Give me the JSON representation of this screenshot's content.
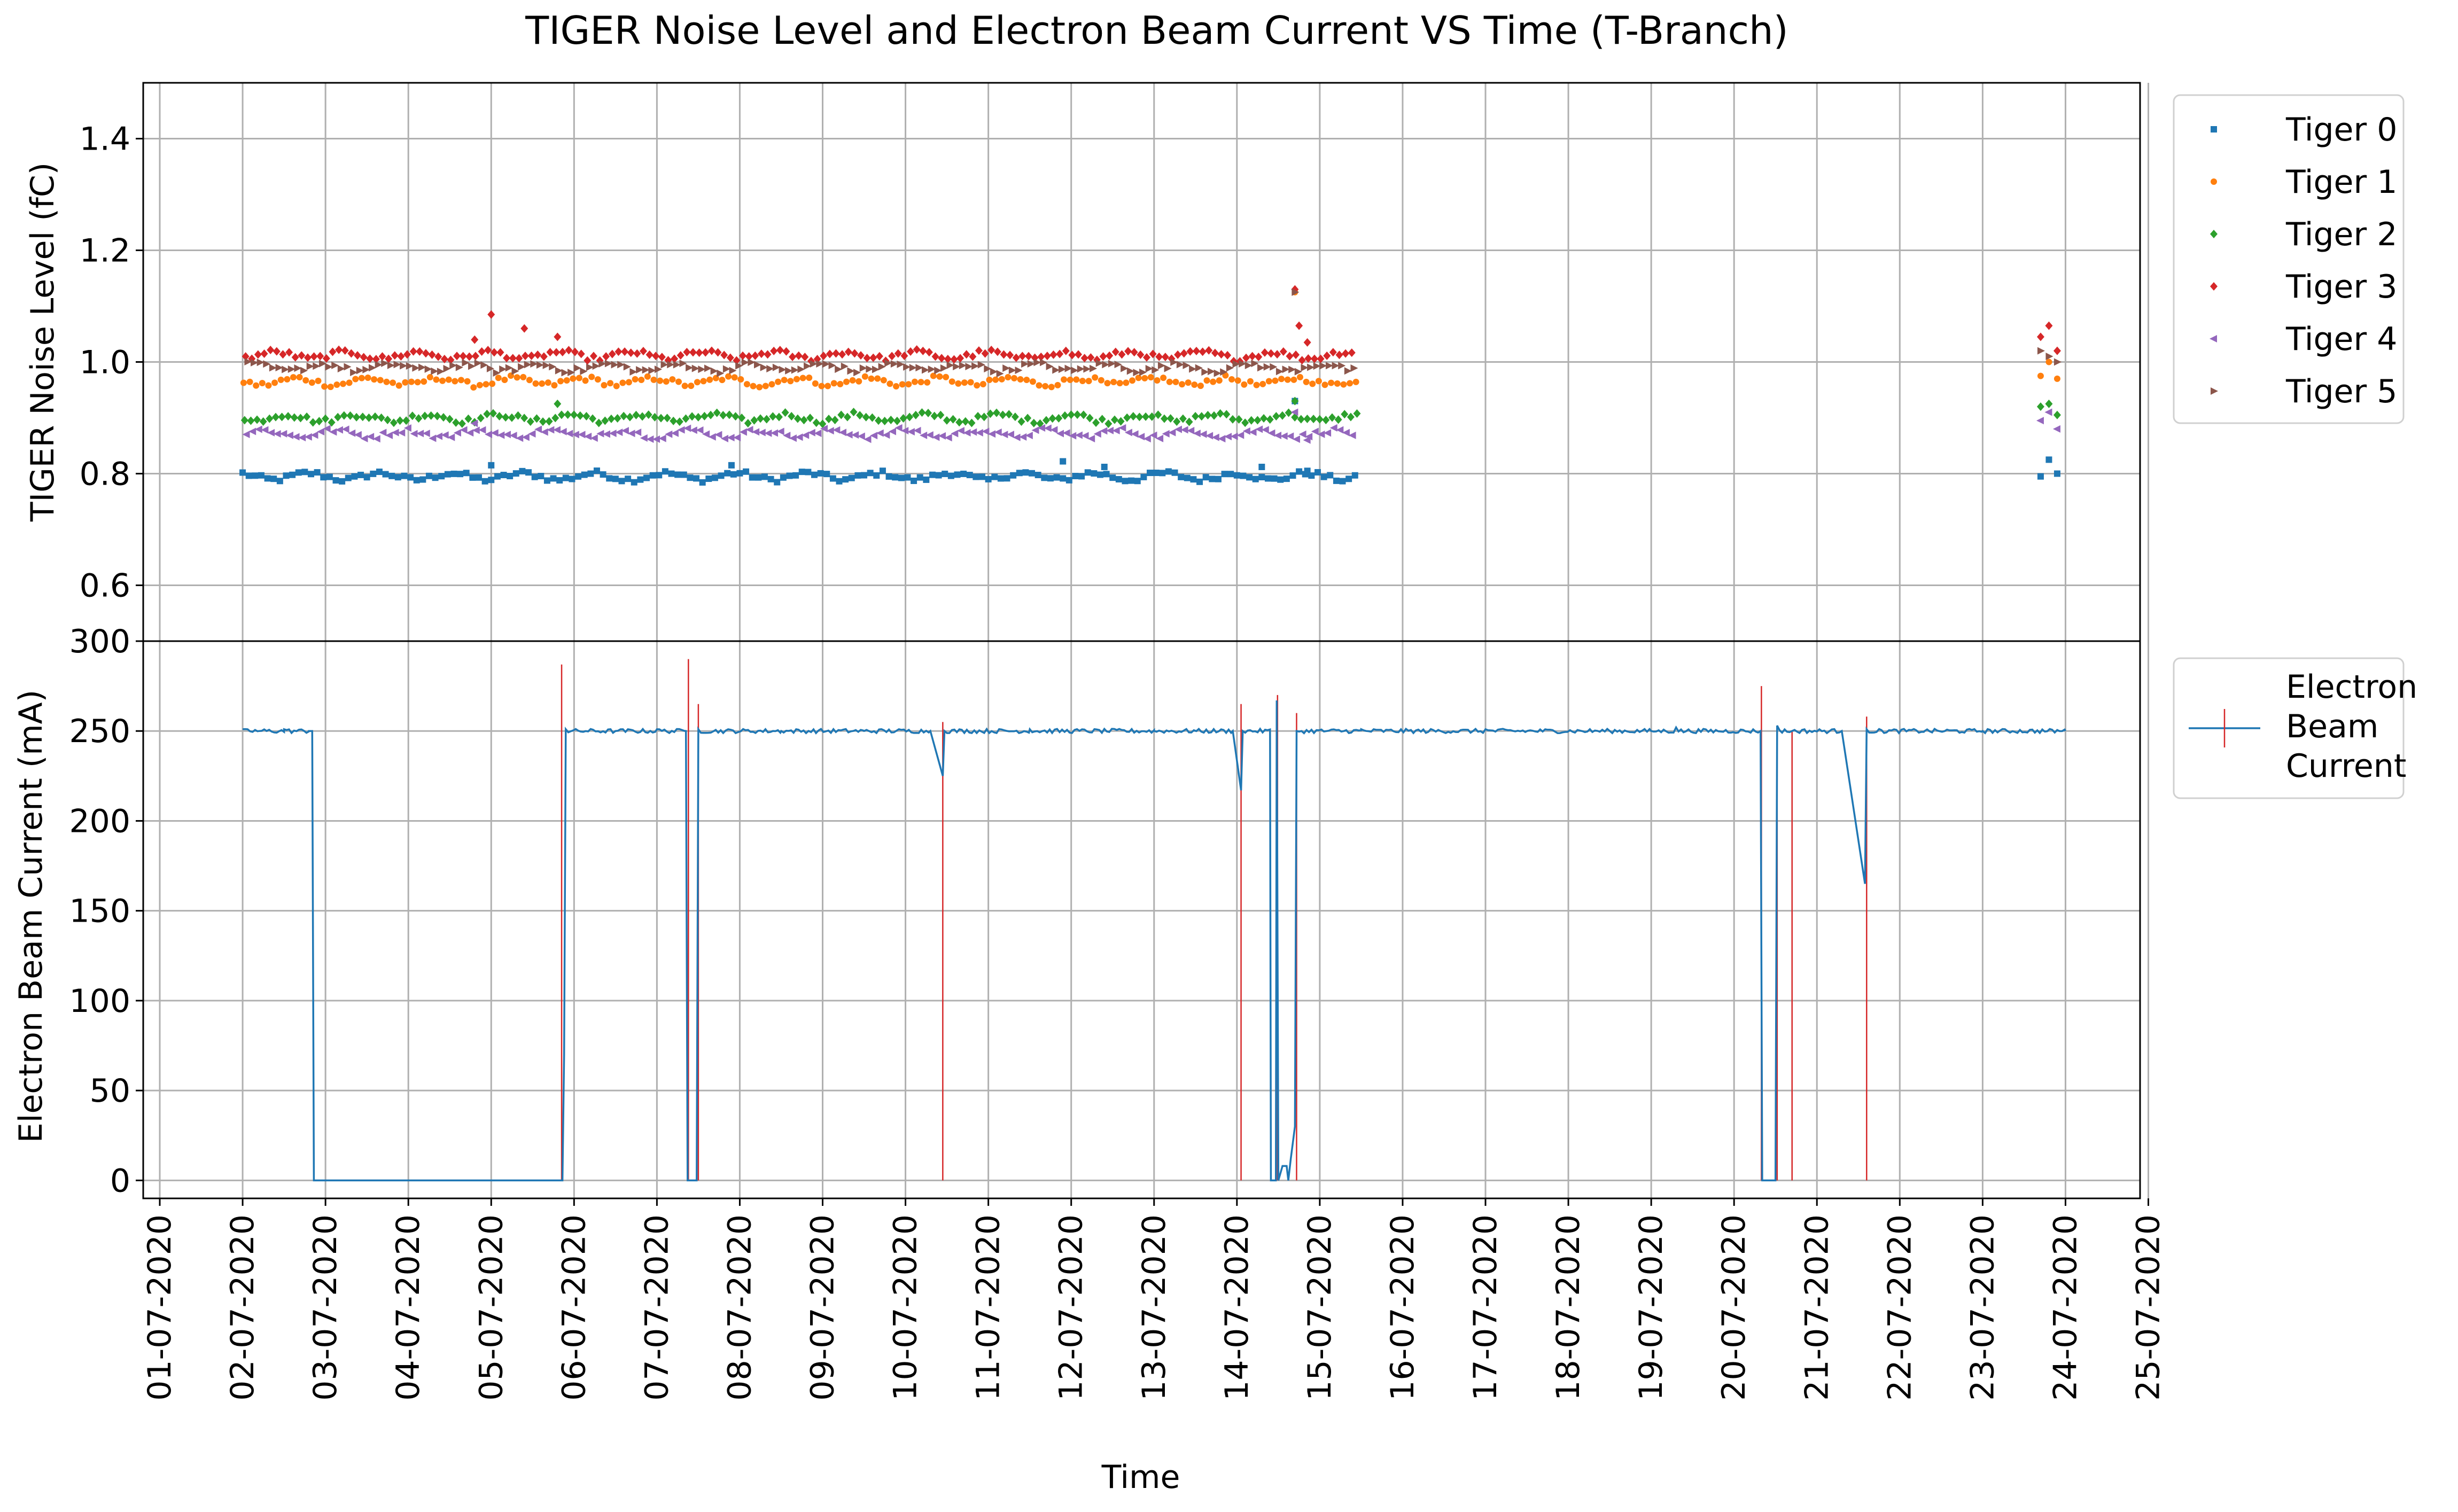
{
  "chart_data": {
    "type": "scatter",
    "title": "TIGER Noise Level and Electron Beam Current VS Time (T-Branch)",
    "xlabel": "Time",
    "x_ticks": [
      "01-07-2020",
      "02-07-2020",
      "03-07-2020",
      "04-07-2020",
      "05-07-2020",
      "06-07-2020",
      "07-07-2020",
      "08-07-2020",
      "09-07-2020",
      "10-07-2020",
      "11-07-2020",
      "12-07-2020",
      "13-07-2020",
      "14-07-2020",
      "15-07-2020",
      "16-07-2020",
      "17-07-2020",
      "18-07-2020",
      "19-07-2020",
      "20-07-2020",
      "21-07-2020",
      "22-07-2020",
      "23-07-2020",
      "24-07-2020",
      "25-07-2020"
    ],
    "xlim_days": [
      0.8,
      24.9
    ],
    "grid": true,
    "panels": [
      {
        "type": "scatter",
        "ylabel": "TIGER Noise Level (fC)",
        "ylim": [
          0.5,
          1.5
        ],
        "y_ticks": [
          "0.6",
          "0.8",
          "1.0",
          "1.2",
          "1.4"
        ],
        "legend_position": "right-top",
        "series": [
          {
            "name": "Tiger 0",
            "marker": "square",
            "color": "#1f77b4",
            "base": 0.795,
            "spikes": [
              [
                5.0,
                0.815
              ],
              [
                7.9,
                0.815
              ],
              [
                11.9,
                0.822
              ],
              [
                12.4,
                0.812
              ],
              [
                14.3,
                0.812
              ],
              [
                14.7,
                0.93
              ],
              [
                14.85,
                0.805
              ]
            ],
            "late": [
              [
                23.7,
                0.795
              ],
              [
                23.8,
                0.825
              ],
              [
                23.9,
                0.8
              ]
            ]
          },
          {
            "name": "Tiger 1",
            "marker": "circle",
            "color": "#ff7f0e",
            "base": 0.965,
            "spikes": [
              [
                14.7,
                1.125
              ]
            ],
            "late": [
              [
                23.7,
                0.975
              ],
              [
                23.8,
                1.0
              ],
              [
                23.9,
                0.97
              ]
            ]
          },
          {
            "name": "Tiger 2",
            "marker": "diamond",
            "color": "#2ca02c",
            "base": 0.9,
            "spikes": [
              [
                5.8,
                0.925
              ],
              [
                14.7,
                0.93
              ]
            ],
            "late": [
              [
                23.7,
                0.92
              ],
              [
                23.8,
                0.925
              ],
              [
                23.9,
                0.905
              ]
            ]
          },
          {
            "name": "Tiger 3",
            "marker": "diamond",
            "color": "#d62728",
            "base": 1.012,
            "spikes": [
              [
                4.8,
                1.04
              ],
              [
                5.0,
                1.085
              ],
              [
                5.4,
                1.06
              ],
              [
                5.8,
                1.045
              ],
              [
                14.7,
                1.13
              ],
              [
                14.75,
                1.065
              ],
              [
                14.85,
                1.035
              ]
            ],
            "late": [
              [
                23.7,
                1.045
              ],
              [
                23.8,
                1.065
              ],
              [
                23.9,
                1.02
              ]
            ]
          },
          {
            "name": "Tiger 4",
            "marker": "triangle-left",
            "color": "#9467bd",
            "base": 0.872,
            "spikes": [
              [
                4.8,
                0.89
              ],
              [
                14.7,
                0.91
              ],
              [
                14.85,
                0.86
              ]
            ],
            "late": [
              [
                23.7,
                0.895
              ],
              [
                23.8,
                0.91
              ],
              [
                23.9,
                0.88
              ]
            ]
          },
          {
            "name": "Tiger 5",
            "marker": "triangle-right",
            "color": "#8c564b",
            "base": 0.99,
            "spikes": [
              [
                14.7,
                1.125
              ]
            ],
            "late": [
              [
                23.7,
                1.02
              ],
              [
                23.8,
                1.01
              ],
              [
                23.9,
                1.0
              ]
            ]
          }
        ],
        "x_range": [
          2.0,
          15.45
        ]
      },
      {
        "type": "line",
        "ylabel": "Electron Beam Current (mA)",
        "ylim": [
          -10,
          300
        ],
        "y_ticks": [
          "0",
          "50",
          "100",
          "150",
          "200",
          "250",
          "300"
        ],
        "legend_position": "right-top",
        "series": [
          {
            "name": "Electron Beam Current",
            "color": "#1f77b4",
            "error_color": "#d62728",
            "points": [
              [
                2.0,
                251
              ],
              [
                2.2,
                250
              ],
              [
                2.5,
                251
              ],
              [
                2.8,
                250
              ],
              [
                2.84,
                250
              ],
              [
                2.86,
                0
              ],
              [
                5.86,
                0
              ],
              [
                5.88,
                70
              ],
              [
                5.9,
                251
              ],
              [
                6.5,
                250
              ],
              [
                7.0,
                251
              ],
              [
                7.35,
                250
              ],
              [
                7.37,
                0
              ],
              [
                7.48,
                0
              ],
              [
                7.5,
                251
              ],
              [
                8.5,
                250
              ],
              [
                9.5,
                250
              ],
              [
                10.3,
                250
              ],
              [
                10.45,
                225
              ],
              [
                10.47,
                250
              ],
              [
                11.5,
                251
              ],
              [
                13.0,
                250
              ],
              [
                13.95,
                250
              ],
              [
                14.05,
                217
              ],
              [
                14.07,
                250
              ],
              [
                14.4,
                250
              ],
              [
                14.41,
                0
              ],
              [
                14.47,
                0
              ],
              [
                14.48,
                267
              ],
              [
                14.5,
                0
              ],
              [
                14.55,
                8
              ],
              [
                14.6,
                8
              ],
              [
                14.62,
                0
              ],
              [
                14.65,
                12
              ],
              [
                14.7,
                30
              ],
              [
                14.72,
                250
              ],
              [
                15.5,
                251
              ],
              [
                17.0,
                251
              ],
              [
                18.5,
                250
              ],
              [
                19.0,
                250
              ],
              [
                19.3,
                252
              ],
              [
                20.32,
                250
              ],
              [
                20.34,
                0
              ],
              [
                20.5,
                0
              ],
              [
                20.52,
                253
              ],
              [
                20.7,
                250
              ],
              [
                21.3,
                250
              ],
              [
                21.58,
                165
              ],
              [
                21.6,
                251
              ],
              [
                22.3,
                250
              ],
              [
                23.0,
                250
              ],
              [
                24.0,
                250
              ]
            ],
            "error_bars": [
              [
                5.85,
                287
              ],
              [
                7.38,
                290
              ],
              [
                7.5,
                265
              ],
              [
                10.45,
                255
              ],
              [
                14.05,
                265
              ],
              [
                14.49,
                270
              ],
              [
                14.72,
                260
              ],
              [
                20.33,
                275
              ],
              [
                20.52,
                250
              ],
              [
                21.6,
                258
              ],
              [
                20.7,
                250
              ]
            ]
          }
        ]
      }
    ]
  }
}
